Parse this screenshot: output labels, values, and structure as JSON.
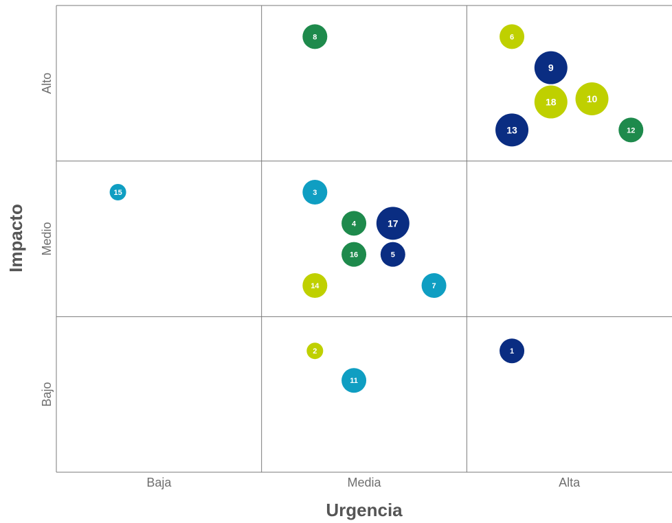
{
  "chart_data": {
    "type": "scatter",
    "xlabel": "Urgencia",
    "ylabel": "Impacto",
    "x_categories": [
      "Baja",
      "Media",
      "Alta"
    ],
    "y_categories": [
      "Bajo",
      "Medio",
      "Alto"
    ],
    "xlim": [
      0,
      3
    ],
    "ylim": [
      0,
      3
    ],
    "grid": true,
    "colors": {
      "navy": "#0a2d82",
      "green": "#1e8a4c",
      "lime": "#bfd000",
      "teal": "#0f9ec2"
    },
    "points": [
      {
        "label": "1",
        "x": 2.22,
        "y": 0.78,
        "size": "medium",
        "color": "navy"
      },
      {
        "label": "2",
        "x": 1.26,
        "y": 0.78,
        "size": "small",
        "color": "lime"
      },
      {
        "label": "3",
        "x": 1.26,
        "y": 1.8,
        "size": "medium",
        "color": "teal"
      },
      {
        "label": "4",
        "x": 1.45,
        "y": 1.6,
        "size": "medium",
        "color": "green"
      },
      {
        "label": "5",
        "x": 1.64,
        "y": 1.4,
        "size": "medium",
        "color": "navy"
      },
      {
        "label": "6",
        "x": 2.22,
        "y": 2.8,
        "size": "medium",
        "color": "lime"
      },
      {
        "label": "7",
        "x": 1.84,
        "y": 1.2,
        "size": "medium",
        "color": "teal"
      },
      {
        "label": "8",
        "x": 1.26,
        "y": 2.8,
        "size": "medium",
        "color": "green"
      },
      {
        "label": "9",
        "x": 2.41,
        "y": 2.6,
        "size": "large",
        "color": "navy"
      },
      {
        "label": "10",
        "x": 2.61,
        "y": 2.4,
        "size": "large",
        "color": "lime"
      },
      {
        "label": "11",
        "x": 1.45,
        "y": 0.59,
        "size": "medium",
        "color": "teal"
      },
      {
        "label": "12",
        "x": 2.8,
        "y": 2.2,
        "size": "medium",
        "color": "green"
      },
      {
        "label": "13",
        "x": 2.22,
        "y": 2.2,
        "size": "large",
        "color": "navy"
      },
      {
        "label": "14",
        "x": 1.26,
        "y": 1.2,
        "size": "medium",
        "color": "lime"
      },
      {
        "label": "15",
        "x": 0.3,
        "y": 1.8,
        "size": "small",
        "color": "teal"
      },
      {
        "label": "16",
        "x": 1.45,
        "y": 1.4,
        "size": "medium",
        "color": "green"
      },
      {
        "label": "17",
        "x": 1.64,
        "y": 1.6,
        "size": "large",
        "color": "navy"
      },
      {
        "label": "18",
        "x": 2.41,
        "y": 2.38,
        "size": "large",
        "color": "lime"
      }
    ]
  }
}
